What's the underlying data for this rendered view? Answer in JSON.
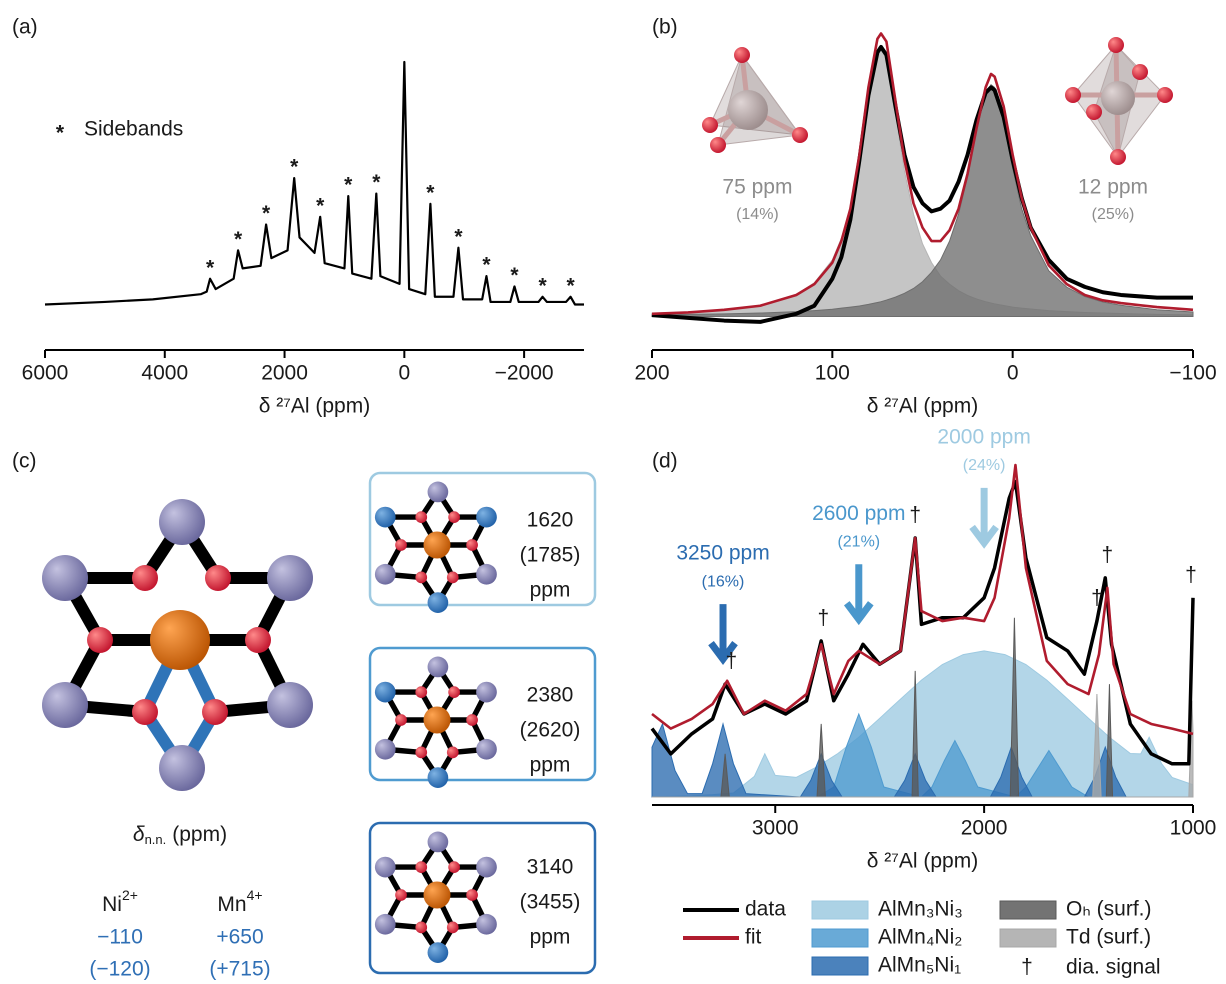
{
  "chart_data": [
    {
      "type": "line",
      "label": "(a)",
      "xlabel": "δ ²⁷Al (ppm)",
      "xlim": [
        6000,
        -3000
      ],
      "xticks": [
        6000,
        4000,
        2000,
        0,
        {
          "value": -2000,
          "label": "−2000"
        }
      ],
      "ylim": [
        0,
        100
      ],
      "color": "#000000",
      "x": [
        6000,
        5000,
        4200,
        3400,
        3300,
        3244,
        3150,
        2850,
        2776,
        2700,
        2400,
        2308,
        2220,
        1950,
        1839,
        1750,
        1500,
        1405,
        1330,
        1000,
        936,
        870,
        550,
        468,
        400,
        80,
        0,
        -80,
        -350,
        -435,
        -510,
        -820,
        -903,
        -980,
        -1300,
        -1371,
        -1440,
        -1770,
        -1839,
        -1910,
        -2240,
        -2308,
        -2380,
        -2700,
        -2776,
        -2850,
        -3000
      ],
      "values": [
        6,
        7,
        8,
        10,
        11,
        16,
        12,
        16,
        27,
        20,
        21,
        37,
        24,
        27,
        55,
        32,
        26,
        40,
        22,
        20,
        48,
        18,
        16,
        49,
        17,
        14,
        100,
        12,
        10,
        45,
        9,
        9,
        28,
        8,
        8,
        17,
        7,
        7,
        13,
        7,
        7,
        9,
        7,
        7,
        9,
        6,
        6
      ],
      "legend_symbol": "*",
      "legend_label": "Sidebands",
      "sideband_marker": "*",
      "sidebands": [
        3244,
        2776,
        2308,
        1839,
        1405,
        936,
        468,
        -435,
        -903,
        -1371,
        -1839,
        -2308,
        -2776
      ]
    },
    {
      "type": "line",
      "label": "(b)",
      "xlabel": "δ ²⁷Al (ppm)",
      "xlim": [
        200,
        -100
      ],
      "xticks": [
        200,
        100,
        0,
        {
          "value": -100,
          "label": "−100"
        }
      ],
      "ylim": [
        -5,
        110
      ],
      "x": [
        200,
        180,
        160,
        140,
        120,
        110,
        100,
        95,
        90,
        85,
        80,
        75,
        73,
        70,
        65,
        60,
        55,
        50,
        45,
        40,
        35,
        30,
        25,
        20,
        15,
        12,
        10,
        5,
        0,
        -5,
        -10,
        -20,
        -30,
        -40,
        -50,
        -60,
        -80,
        -100
      ],
      "series": [
        {
          "color": "#b5b5b5",
          "fill": true,
          "values": [
            1.2,
            1.7,
            2.5,
            4.2,
            8.2,
            12.5,
            21,
            29,
            40,
            58,
            80,
            98,
            100,
            96,
            75,
            54,
            38,
            27,
            20,
            15,
            12,
            9.6,
            7.8,
            6.5,
            5.5,
            5,
            4.7,
            4.1,
            3.5,
            3.1,
            2.8,
            2.2,
            1.8,
            1.5,
            1.3,
            1.1,
            0.8,
            0.6
          ]
        },
        {
          "color": "#6e6e6e",
          "fill": true,
          "values": [
            0.6,
            0.8,
            1,
            1.3,
            1.8,
            2.2,
            2.7,
            3.1,
            3.5,
            3.9,
            4.5,
            5.2,
            5.5,
            6.1,
            7.2,
            8.6,
            10.4,
            12.9,
            16.4,
            21,
            28,
            38,
            52,
            69,
            83,
            86,
            85,
            72,
            55,
            40,
            30,
            17,
            10.9,
            7.4,
            5.4,
            4.2,
            2.5,
            1.7
          ]
        },
        {
          "color": "#000000",
          "values": [
            0.5,
            -0.5,
            -1.5,
            -2,
            1,
            4,
            14,
            22,
            36,
            58,
            82,
            98,
            100,
            97,
            78,
            60,
            48,
            42,
            39,
            40,
            43,
            50,
            60,
            73,
            83,
            85,
            84,
            74,
            58,
            44,
            33,
            21,
            14,
            11,
            9,
            8,
            7,
            7
          ]
        },
        {
          "color": "#b01c2e",
          "values": [
            1,
            1.5,
            2.5,
            4,
            8,
            12,
            20,
            28,
            40,
            60,
            85,
            103,
            105,
            102,
            80,
            58,
            42,
            33,
            28,
            28,
            32,
            40,
            53,
            70,
            85,
            90,
            89,
            78,
            60,
            44,
            33,
            19,
            12,
            8,
            6,
            5,
            3.5,
            2.5
          ]
        }
      ],
      "annotations": [
        {
          "x": 75,
          "label": "75 ppm",
          "note": "(14%)"
        },
        {
          "x": 12,
          "label": "12 ppm",
          "note": "(25%)"
        }
      ]
    },
    {
      "type": "line",
      "label": "(d)",
      "xlabel": "δ ²⁷Al (ppm)",
      "xlim": [
        3590,
        1000
      ],
      "xticks": [
        3000,
        2000,
        1000
      ],
      "ylim": [
        0,
        100
      ],
      "legend": true,
      "series": [
        {
          "name": "data",
          "color": "#000000",
          "x": [
            3590,
            3500,
            3400,
            3300,
            3240,
            3150,
            3050,
            2950,
            2850,
            2780,
            2720,
            2650,
            2580,
            2500,
            2400,
            2330,
            2300,
            2200,
            2100,
            2000,
            1950,
            1880,
            1850,
            1800,
            1700,
            1600,
            1520,
            1460,
            1420,
            1390,
            1300,
            1200,
            1100,
            1020,
            1000
          ],
          "values": [
            20.6,
            13,
            19,
            23.5,
            34,
            25,
            28,
            25,
            29,
            47,
            29,
            37,
            46,
            40,
            44,
            78,
            52,
            54,
            54,
            60,
            69,
            90,
            95,
            72,
            48,
            44,
            37,
            53,
            66,
            46,
            22,
            13,
            10,
            10,
            60
          ]
        },
        {
          "name": "fit",
          "color": "#b01c2e",
          "x": [
            3590,
            3500,
            3400,
            3300,
            3230,
            3150,
            3050,
            2950,
            2850,
            2780,
            2720,
            2650,
            2600,
            2500,
            2400,
            2330,
            2300,
            2200,
            2100,
            2000,
            1950,
            1880,
            1850,
            1800,
            1700,
            1600,
            1500,
            1450,
            1410,
            1380,
            1300,
            1200,
            1100,
            1000
          ],
          "values": [
            25,
            20.6,
            23.5,
            28,
            35,
            25,
            29,
            26,
            31,
            46,
            31,
            41,
            44,
            40,
            44,
            78,
            56,
            53,
            54,
            53,
            60,
            84,
            100,
            69,
            41,
            34,
            31,
            43,
            63,
            40,
            25,
            22,
            20.6,
            19
          ]
        },
        {
          "name": "AlMn₃Ni₃",
          "color": "#9ecae1",
          "fill": true,
          "x": [
            3590,
            3500,
            3400,
            3300,
            3200,
            3100,
            3050,
            3000,
            2900,
            2800,
            2700,
            2600,
            2500,
            2400,
            2300,
            2200,
            2100,
            2000,
            1900,
            1800,
            1700,
            1600,
            1500,
            1400,
            1300,
            1250,
            1210,
            1150,
            1100,
            1000
          ],
          "values": [
            0.1,
            0.2,
            0.35,
            0.7,
            1.2,
            6.2,
            13,
            6.5,
            5.9,
            9.1,
            13.1,
            18,
            23.7,
            29.5,
            35.2,
            39.9,
            42.9,
            44,
            42.9,
            39.9,
            35.2,
            29.5,
            23.7,
            18,
            13.1,
            13,
            18,
            10,
            5.9,
            3.7
          ]
        },
        {
          "name": "AlMn₄Ni₂",
          "color": "#4f9bd0",
          "fill": true,
          "x": [
            3590,
            2800,
            2720,
            2660,
            2600,
            2540,
            2480,
            2300,
            2250,
            2190,
            2140,
            2090,
            2030,
            1850,
            1800,
            1740,
            1690,
            1640,
            1580,
            1500,
            1000
          ],
          "values": [
            0,
            0,
            3,
            15,
            25,
            15,
            3,
            0,
            3,
            11,
            17,
            11,
            3,
            0,
            3,
            9,
            14,
            9,
            3,
            0,
            0
          ]
        },
        {
          "name": "AlMn₅Ni₁",
          "color": "#2b6cb0",
          "fill": true,
          "x": [
            3590,
            3540,
            3480,
            3420,
            3350,
            3300,
            3250,
            3200,
            3140,
            2880,
            2830,
            2780,
            2730,
            2680,
            2430,
            2380,
            2330,
            2280,
            2230,
            1970,
            1920,
            1870,
            1820,
            1770,
            1520,
            1470,
            1420,
            1370,
            1320,
            1000
          ],
          "values": [
            15,
            22,
            8,
            1,
            1,
            10,
            22,
            10,
            1,
            0,
            5,
            13,
            5,
            0,
            0,
            5,
            13,
            5,
            0,
            0,
            6,
            15,
            6,
            0,
            0,
            6,
            15,
            6,
            0,
            0
          ]
        },
        {
          "name": "Oₕ (surf.)",
          "color": "#5a5a5a",
          "fill": true,
          "x": [
            3590,
            3260,
            3240,
            3220,
            2800,
            2780,
            2760,
            2345,
            2330,
            2315,
            1875,
            1855,
            1835,
            1415,
            1400,
            1385,
            1000
          ],
          "values": [
            0,
            0,
            13,
            0,
            0,
            22,
            0,
            0,
            38,
            0,
            0,
            54,
            0,
            0,
            34,
            0,
            0
          ]
        },
        {
          "name": "Td (surf.)",
          "color": "#a8a8a8",
          "fill": true,
          "x": [
            3590,
            1480,
            1460,
            1440,
            1020,
            1005,
            1000
          ],
          "values": [
            0,
            0,
            31,
            0,
            0,
            29,
            20
          ]
        }
      ],
      "annotations": [
        {
          "x": 3250,
          "label": "3250 ppm",
          "note": "(16%)",
          "color": "#2b6cb0"
        },
        {
          "x": 2600,
          "label": "2600 ppm",
          "note": "(21%)",
          "color": "#4a97cc"
        },
        {
          "x": 2000,
          "label": "2000 ppm",
          "note": "(24%)",
          "color": "#9ecae1"
        }
      ],
      "dagger": {
        "symbol": "†",
        "label": "dia. signal",
        "x": [
          3210,
          2770,
          2330,
          1460,
          1410,
          1010
        ]
      }
    }
  ],
  "diagram": {
    "label": "(c)",
    "axis_symbol": "δ",
    "axis_sub": "n.n.",
    "axis_unit": "(ppm)",
    "ions": [
      {
        "symbol": "Ni",
        "charge": "2+",
        "shift": "−110",
        "shift_alt": "(−120)"
      },
      {
        "symbol": "Mn",
        "charge": "4+",
        "shift": "+650",
        "shift_alt": "(+715)"
      }
    ],
    "boxes": [
      {
        "shift": "1620",
        "shift_alt": "(1785)",
        "unit": "ppm"
      },
      {
        "shift": "2380",
        "shift_alt": "(2620)",
        "unit": "ppm"
      },
      {
        "shift": "3140",
        "shift_alt": "(3455)",
        "unit": "ppm"
      }
    ]
  }
}
